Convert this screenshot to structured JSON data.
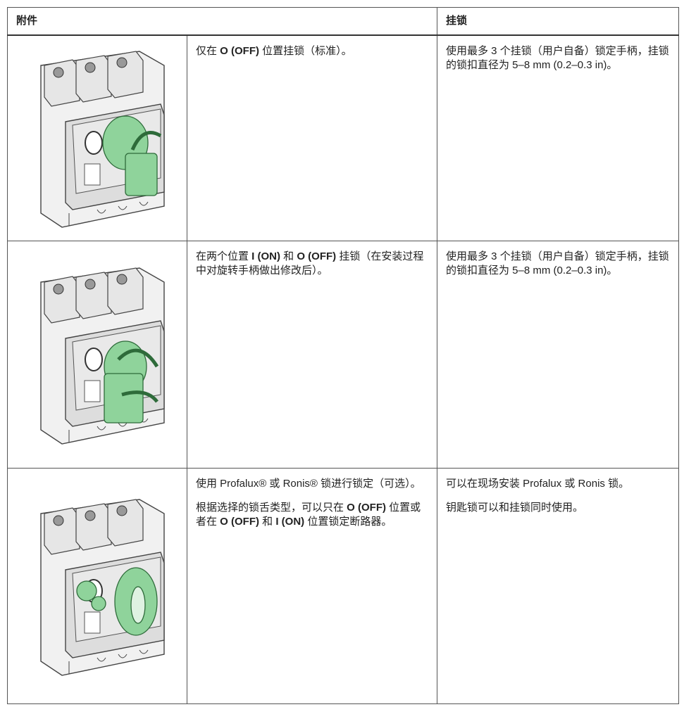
{
  "table": {
    "header": [
      "附件",
      "挂锁"
    ],
    "rows": [
      {
        "description": [
          [
            {
              "text": "仅在 "
            },
            {
              "text": "O (OFF)",
              "bold": true
            },
            {
              "text": " 位置挂锁（标准）。"
            }
          ]
        ],
        "padlock": [
          [
            {
              "text": "使用最多 3 个挂锁（用户自备）锁定手柄，挂锁的锁扣直径为 5–8 mm (0.2–0.3 in)。"
            }
          ]
        ]
      },
      {
        "description": [
          [
            {
              "text": "在两个位置 "
            },
            {
              "text": "I (ON)",
              "bold": true
            },
            {
              "text": " 和 "
            },
            {
              "text": "O (OFF)",
              "bold": true
            },
            {
              "text": " 挂锁（在安装过程中对旋转手柄做出修改后）。"
            }
          ]
        ],
        "padlock": [
          [
            {
              "text": "使用最多 3 个挂锁（用户自备）锁定手柄，挂锁的锁扣直径为 5–8 mm (0.2–0.3 in)。"
            }
          ]
        ]
      },
      {
        "description": [
          [
            {
              "text": "使用 Profalux® 或 Ronis® 锁进行锁定（可选）。"
            }
          ],
          [
            {
              "text": "根据选择的锁舌类型，可以只在 "
            },
            {
              "text": "O (OFF)",
              "bold": true
            },
            {
              "text": " 位置或者在 "
            },
            {
              "text": "O (OFF)",
              "bold": true
            },
            {
              "text": " 和 "
            },
            {
              "text": "I (ON)",
              "bold": true
            },
            {
              "text": " 位置锁定断路器。"
            }
          ]
        ],
        "padlock": [
          [
            {
              "text": "可以在现场安装 Profalux 或 Ronis 锁。"
            }
          ],
          [
            {
              "text": "钥匙锁可以和挂锁同时使用。"
            }
          ]
        ]
      }
    ]
  }
}
